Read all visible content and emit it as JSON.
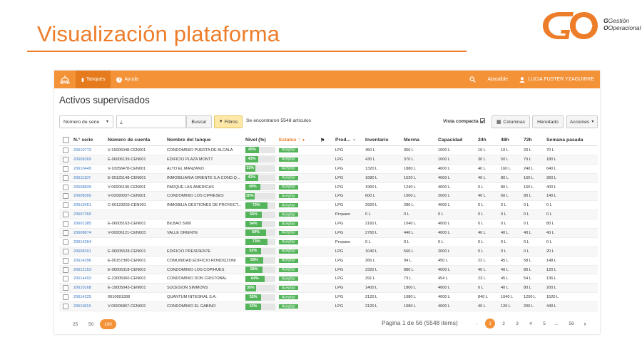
{
  "slide": {
    "title": "Visualización plataforma"
  },
  "logo": {
    "line1": "Gestión",
    "line2": "Operacional"
  },
  "nav": {
    "tanques": "Tanques",
    "ayuda": "Ayuda",
    "abastible": "Abastible",
    "user": "LUCIA FUSTER YZAGUIRRE"
  },
  "page": {
    "heading": "Activos supervisados"
  },
  "toolbar": {
    "serial_select": "Número de serie",
    "search_value": "¿",
    "search_button": "Buscar",
    "filter_button": "Filtros",
    "found": "Se encontraron 5548 artículos",
    "vista": "Vista compacta",
    "columns": "Columnas",
    "inherited": "Heredado",
    "actions": "Acciones"
  },
  "columns": [
    "N.° serie",
    "Número de cuenta",
    "Nombre del tanque",
    "Nivel (%)",
    "Estatus",
    "Prod...",
    "Inventario",
    "Merma",
    "Capacidad",
    "24h",
    "48h",
    "72h",
    "Semana pasada"
  ],
  "rows": [
    {
      "serie": "20610773",
      "cuenta": "V-15005048-CEN001",
      "nombre": "CONDOMINIO PUERTA DE ALCALA",
      "nivel": 45,
      "estatus": "Aceptar",
      "prod": "LPG",
      "inv": "450 L",
      "merma": "350 L",
      "cap": "1000 L",
      "h24": "10 L",
      "h48": "10 L",
      "h72": "20 L",
      "sem": "70 L"
    },
    {
      "serie": "20609269",
      "cuenta": "E-06006139-CEN001",
      "nombre": "EDIFICIO PLAZA MONTT",
      "nivel": 43,
      "estatus": "Aceptar",
      "prod": "LPG",
      "inv": "430 L",
      "merma": "370 L",
      "cap": "1000 L",
      "h24": "30 L",
      "h48": "50 L",
      "h72": "70 L",
      "sem": "180 L"
    },
    {
      "serie": "20610449",
      "cuenta": "V-10058478-CEN001",
      "nombre": "ALTO EL MANZANO",
      "nivel": 33,
      "estatus": "Aceptar",
      "prod": "LPG",
      "inv": "1320 L",
      "merma": "1880 L",
      "cap": "4000 L",
      "h24": "40 L",
      "h48": "160 L",
      "h72": "240 L",
      "sem": "640 L"
    },
    {
      "serie": "20611107",
      "cuenta": "E-00125148-CEN001",
      "nombre": "INMOBILIARIA ORIENTE S.A COND.Q...",
      "nivel": 42,
      "estatus": "Aceptar",
      "prod": "LPG",
      "inv": "1680 L",
      "merma": "1520 L",
      "cap": "4000 L",
      "h24": "40 L",
      "h48": "80 L",
      "h72": "160 L",
      "sem": "360 L"
    },
    {
      "serie": "20608839",
      "cuenta": "V-06006130-CEN001",
      "nombre": "PARQUE LAS AMERICAS",
      "nivel": 49,
      "estatus": "Aceptar",
      "prod": "LPG",
      "inv": "1960 L",
      "merma": "1240 L",
      "cap": "4000 L",
      "h24": "0 L",
      "h48": "80 L",
      "h72": "160 L",
      "sem": "400 L"
    },
    {
      "serie": "20608260",
      "cuenta": "V-00090037-CEN001",
      "nombre": "CONDOMINIO LOS CIPRESES",
      "nivel": 30,
      "estatus": "Aceptar",
      "prod": "LPG",
      "inv": "600 L",
      "merma": "1000 L",
      "cap": "2000 L",
      "h24": "40 L",
      "h48": "60 L",
      "h72": "80 L",
      "sem": "140 L"
    },
    {
      "serie": "20613451",
      "cuenta": "C-00123203-CEN001",
      "nombre": "INMOBILIA GESTIONES DE PROYECT...",
      "nivel": 73,
      "estatus": "Aceptar",
      "prod": "LPG",
      "inv": "2920 L",
      "merma": "280 L",
      "cap": "4000 L",
      "h24": "0 L",
      "h48": "0 L",
      "h72": "0 L",
      "sem": "0 L"
    },
    {
      "serie": "20607260",
      "cuenta": "",
      "nombre": "",
      "nivel": 55,
      "estatus": "Aceptar",
      "prod": "Propano",
      "inv": "0 L",
      "merma": "0 L",
      "cap": "0 L",
      "h24": "0 L",
      "h48": "0 L",
      "h72": "0 L",
      "sem": "0 L"
    },
    {
      "serie": "20601385",
      "cuenta": "E-06005163-CEN001",
      "nombre": "BILBAO 5000",
      "nivel": 54,
      "estatus": "Aceptar",
      "prod": "LPG",
      "inv": "2160 L",
      "merma": "1040 L",
      "cap": "4000 L",
      "h24": "0 L",
      "h48": "0 L",
      "h72": "0 L",
      "sem": "80 L"
    },
    {
      "serie": "20608874",
      "cuenta": "V-06006121-CEN003",
      "nombre": "VALLE ORIENTE",
      "nivel": 69,
      "estatus": "Aceptar",
      "prod": "LPG",
      "inv": "2760 L",
      "merma": "440 L",
      "cap": "4000 L",
      "h24": "40 L",
      "h48": "40 L",
      "h72": "40 L",
      "sem": "40 L"
    },
    {
      "serie": "20614264",
      "cuenta": "",
      "nombre": "",
      "nivel": 73,
      "estatus": "Aceptar",
      "prod": "Propano",
      "inv": "0 L",
      "merma": "0 L",
      "cap": "0 L",
      "h24": "0 L",
      "h48": "0 L",
      "h72": "0 L",
      "sem": "0 L"
    },
    {
      "serie": "20608291",
      "cuenta": "E-06005528-CEN001",
      "nombre": "EDIFICIO PRESIDENTE",
      "nivel": 52,
      "estatus": "Aceptar",
      "prod": "LPG",
      "inv": "1040 L",
      "merma": "560 L",
      "cap": "2000 L",
      "h24": "0 L",
      "h48": "0 L",
      "h72": "0 L",
      "sem": "20 L"
    },
    {
      "serie": "20614396",
      "cuenta": "E-00157380-CEN001",
      "nombre": "COMUNIDAD EDIFICIO RONDIZZONI",
      "nivel": 59,
      "estatus": "Aceptar",
      "prod": "LPG",
      "inv": "266 L",
      "merma": "94 L",
      "cap": "450 L",
      "h24": "22 L",
      "h48": "45 L",
      "h72": "58 L",
      "sem": "148 L"
    },
    {
      "serie": "20612153",
      "cuenta": "E-06005318-CEN001",
      "nombre": "CONDOMINIO LOS COPIHUES",
      "nivel": 58,
      "estatus": "Aceptar",
      "prod": "LPG",
      "inv": "2320 L",
      "merma": "880 L",
      "cap": "4000 L",
      "h24": "40 L",
      "h48": "40 L",
      "h72": "80 L",
      "sem": "120 L"
    },
    {
      "serie": "20614493",
      "cuenta": "E-23005060-CEN001",
      "nombre": "CONDOMINIO DON CRISTOBAL",
      "nivel": 64,
      "estatus": "Aceptar",
      "prod": "LPG",
      "inv": "291 L",
      "merma": "73 L",
      "cap": "454 L",
      "h24": "23 L",
      "h48": "45 L",
      "h72": "54 L",
      "sem": "136 L"
    },
    {
      "serie": "20610168",
      "cuenta": "E-19005043-CEN001",
      "nombre": "SUCESION SIMMONS",
      "nivel": 35,
      "estatus": "Aceptar",
      "prod": "LPG",
      "inv": "1400 L",
      "merma": "1800 L",
      "cap": "4000 L",
      "h24": "0 L",
      "h48": "40 L",
      "h72": "80 L",
      "sem": "200 L"
    },
    {
      "serie": "20614225",
      "cuenta": "0010691308",
      "nombre": "QUANTUM INTEGRAL S.A.",
      "nivel": 53,
      "estatus": "Aceptar",
      "prod": "LPG",
      "inv": "2120 L",
      "merma": "1080 L",
      "cap": "4000 L",
      "h24": "840 L",
      "h48": "1040 L",
      "h72": "1200 L",
      "sem": "1520 L"
    },
    {
      "serie": "20611819",
      "cuenta": "V-06005867-CEN002",
      "nombre": "CONDOMINIO EL GABINO",
      "nivel": 53,
      "estatus": "Aceptar",
      "prod": "LPG",
      "inv": "2120 L",
      "merma": "1080 L",
      "cap": "4000 L",
      "h24": "40 L",
      "h48": "120 L",
      "h72": "200 L",
      "sem": "440 L"
    }
  ],
  "pager": {
    "sizes": [
      "25",
      "50",
      "100"
    ],
    "active_size": "100",
    "info": "Página 1 de 56 (5548 items)",
    "pages": [
      "1",
      "2",
      "3",
      "4",
      "5",
      "...",
      "56"
    ],
    "active_page": "1",
    "prev": "‹",
    "next": "›"
  },
  "colors": {
    "accent": "#f39237",
    "title": "#ee7d2a",
    "level": "#53b45a",
    "link": "#3a78c3"
  }
}
